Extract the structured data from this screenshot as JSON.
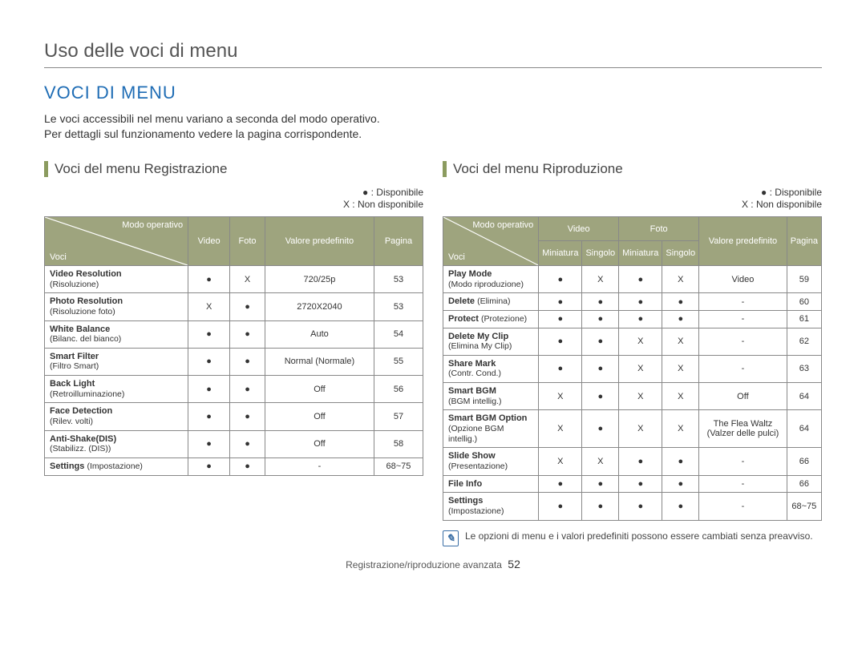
{
  "page_title": "Uso delle voci di menu",
  "section_heading": "VOCI DI MENU",
  "intro_line1": "Le voci accessibili nel menu variano a seconda del modo operativo.",
  "intro_line2": "Per dettagli sul funzionamento vedere la pagina corrispondente.",
  "legend_available": "● : Disponibile",
  "legend_unavailable": "X : Non disponibile",
  "diag_top": "Modo operativo",
  "diag_bottom": "Voci",
  "col_video": "Video",
  "col_foto": "Foto",
  "col_default": "Valore predefinito",
  "col_page": "Pagina",
  "col_miniatura": "Miniatura",
  "col_singolo": "Singolo",
  "left": {
    "subhead": "Voci del menu Registrazione",
    "rows": [
      {
        "en": "Video Resolution",
        "it": "(Risoluzione)",
        "v": "●",
        "f": "X",
        "def": "720/25p",
        "pg": "53"
      },
      {
        "en": "Photo Resolution",
        "it": "(Risoluzione foto)",
        "v": "X",
        "f": "●",
        "def": "2720X2040",
        "pg": "53"
      },
      {
        "en": "White Balance",
        "it": "(Bilanc. del bianco)",
        "v": "●",
        "f": "●",
        "def": "Auto",
        "pg": "54"
      },
      {
        "en": "Smart Filter",
        "it": "(Filtro Smart)",
        "v": "●",
        "f": "●",
        "def": "Normal (Normale)",
        "pg": "55"
      },
      {
        "en": "Back Light",
        "it": "(Retroilluminazione)",
        "v": "●",
        "f": "●",
        "def": "Off",
        "pg": "56"
      },
      {
        "en": "Face Detection",
        "it": "(Rilev. volti)",
        "v": "●",
        "f": "●",
        "def": "Off",
        "pg": "57"
      },
      {
        "en": "Anti-Shake(DIS)",
        "it": "(Stabilizz. (DIS))",
        "v": "●",
        "f": "●",
        "def": "Off",
        "pg": "58"
      },
      {
        "en": "Settings",
        "it": "(Impostazione)",
        "inline": true,
        "v": "●",
        "f": "●",
        "def": "-",
        "pg": "68~75"
      }
    ]
  },
  "right": {
    "subhead": "Voci del menu Riproduzione",
    "rows": [
      {
        "en": "Play Mode",
        "it": "(Modo riproduzione)",
        "vm": "●",
        "vs": "X",
        "fm": "●",
        "fs": "X",
        "def": "Video",
        "pg": "59"
      },
      {
        "en": "Delete",
        "it": "(Elimina)",
        "inline": true,
        "vm": "●",
        "vs": "●",
        "fm": "●",
        "fs": "●",
        "def": "-",
        "pg": "60"
      },
      {
        "en": "Protect",
        "it": "(Protezione)",
        "inline": true,
        "vm": "●",
        "vs": "●",
        "fm": "●",
        "fs": "●",
        "def": "-",
        "pg": "61"
      },
      {
        "en": "Delete My Clip",
        "it": "(Elimina My Clip)",
        "vm": "●",
        "vs": "●",
        "fm": "X",
        "fs": "X",
        "def": "-",
        "pg": "62"
      },
      {
        "en": "Share Mark",
        "it": "(Contr. Cond.)",
        "vm": "●",
        "vs": "●",
        "fm": "X",
        "fs": "X",
        "def": "-",
        "pg": "63"
      },
      {
        "en": "Smart BGM",
        "it": "(BGM intellig.)",
        "vm": "X",
        "vs": "●",
        "fm": "X",
        "fs": "X",
        "def": "Off",
        "pg": "64"
      },
      {
        "en": "Smart BGM Option",
        "it": "(Opzione BGM intellig.)",
        "vm": "X",
        "vs": "●",
        "fm": "X",
        "fs": "X",
        "def": "The Flea Waltz (Valzer delle pulci)",
        "pg": "64"
      },
      {
        "en": "Slide Show",
        "it": "(Presentazione)",
        "vm": "X",
        "vs": "X",
        "fm": "●",
        "fs": "●",
        "def": "-",
        "pg": "66"
      },
      {
        "en": "File Info",
        "it": "",
        "vm": "●",
        "vs": "●",
        "fm": "●",
        "fs": "●",
        "def": "-",
        "pg": "66"
      },
      {
        "en": "Settings",
        "it": "(Impostazione)",
        "vm": "●",
        "vs": "●",
        "fm": "●",
        "fs": "●",
        "def": "-",
        "pg": "68~75"
      }
    ]
  },
  "note_text": "Le opzioni di menu e i valori predefiniti possono essere cambiati senza preavviso.",
  "footer_text": "Registrazione/riproduzione avanzata",
  "footer_page": "52",
  "colors": {
    "heading_blue": "#1f6db5",
    "accent_olive": "#8b9b5f",
    "header_bg": "#9ea47e",
    "border": "#888888"
  }
}
